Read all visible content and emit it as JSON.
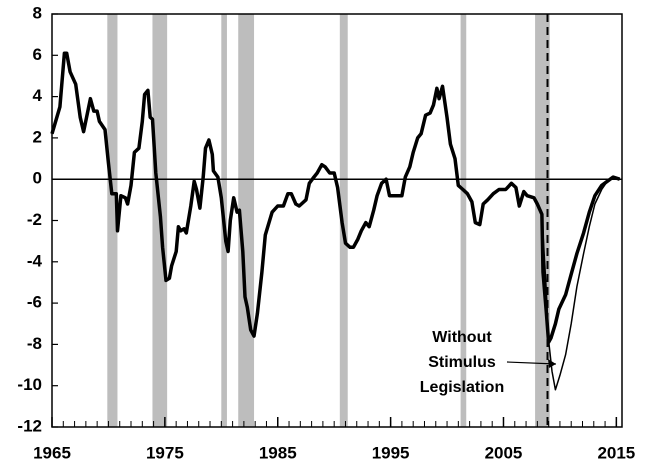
{
  "chart_data": {
    "type": "line",
    "xlim": [
      1965,
      2015.5
    ],
    "ylim": [
      -12,
      8
    ],
    "xticks": [
      1965,
      1975,
      1985,
      1995,
      2005,
      2015
    ],
    "xminor_step": 1,
    "yticks": [
      -12,
      -10,
      -8,
      -6,
      -4,
      -2,
      0,
      2,
      4,
      6,
      8
    ],
    "zero_line": true,
    "shaded_periods": [
      [
        1969.9,
        1970.8
      ],
      [
        1973.9,
        1975.2
      ],
      [
        1980.0,
        1980.5
      ],
      [
        1981.5,
        1982.9
      ],
      [
        1990.5,
        1991.2
      ],
      [
        2001.2,
        2001.7
      ],
      [
        2007.8,
        2009.1
      ]
    ],
    "shade_color": "#bdbdbd",
    "reference_x": 2008.9,
    "series": [
      {
        "color": "#000000",
        "width": 3.5,
        "x": [
          1965.0,
          1965.7,
          1966.1,
          1966.3,
          1966.6,
          1967.1,
          1967.5,
          1967.8,
          1968.4,
          1968.7,
          1969.0,
          1969.2,
          1969.7,
          1970.0,
          1970.3,
          1970.7,
          1970.8,
          1971.1,
          1971.5,
          1971.7,
          1972.0,
          1972.3,
          1972.7,
          1973.0,
          1973.2,
          1973.5,
          1973.7,
          1973.9,
          1974.2,
          1974.6,
          1974.8,
          1975.1,
          1975.4,
          1975.6,
          1976.0,
          1976.2,
          1976.4,
          1976.7,
          1976.9,
          1977.3,
          1977.6,
          1977.8,
          1978.1,
          1978.4,
          1978.6,
          1978.9,
          1979.2,
          1979.3,
          1979.7,
          1980.0,
          1980.4,
          1980.6,
          1980.8,
          1981.1,
          1981.4,
          1981.6,
          1981.9,
          1982.1,
          1982.3,
          1982.6,
          1982.9,
          1983.2,
          1983.6,
          1983.9,
          1984.5,
          1985.0,
          1985.5,
          1985.9,
          1986.2,
          1986.6,
          1986.9,
          1987.5,
          1987.8,
          1988.2,
          1988.5,
          1988.9,
          1989.2,
          1989.6,
          1990.0,
          1990.3,
          1990.7,
          1991.0,
          1991.4,
          1991.7,
          1992.1,
          1992.4,
          1992.8,
          1993.1,
          1993.5,
          1993.8,
          1994.2,
          1994.6,
          1994.9,
          1995.4,
          1996.0,
          1996.3,
          1996.7,
          1997.0,
          1997.4,
          1997.7,
          1998.1,
          1998.5,
          1998.8,
          1999.1,
          1999.3,
          1999.6,
          2000.0,
          2000.3,
          2000.7,
          2001.0,
          2001.4,
          2001.8,
          2002.2,
          2002.5,
          2002.9,
          2003.2,
          2003.6,
          2004.1,
          2004.6,
          2005.2,
          2005.7,
          2006.1,
          2006.4,
          2006.8,
          2007.1,
          2007.7,
          2008.0,
          2008.4,
          2008.5,
          2008.8,
          2009.0,
          2009.2,
          2009.6,
          2009.9,
          2010.5,
          2011.0,
          2011.5,
          2012.1,
          2012.6,
          2013.1,
          2013.7,
          2014.2,
          2014.7,
          2015.3
        ],
        "values": [
          2.2,
          3.5,
          6.1,
          6.1,
          5.2,
          4.6,
          3.0,
          2.3,
          3.9,
          3.3,
          3.3,
          2.8,
          2.4,
          0.8,
          -0.7,
          -0.7,
          -2.5,
          -0.8,
          -0.9,
          -1.2,
          -0.3,
          1.3,
          1.5,
          2.8,
          4.1,
          4.3,
          3.0,
          2.9,
          0.3,
          -1.8,
          -3.3,
          -4.9,
          -4.8,
          -4.2,
          -3.5,
          -2.3,
          -2.5,
          -2.4,
          -2.6,
          -1.3,
          -0.1,
          -0.5,
          -1.4,
          0.1,
          1.5,
          1.9,
          1.2,
          0.4,
          0.1,
          -0.9,
          -3.0,
          -3.5,
          -2.0,
          -0.9,
          -1.6,
          -1.5,
          -3.5,
          -5.7,
          -6.2,
          -7.3,
          -7.6,
          -6.5,
          -4.5,
          -2.7,
          -1.6,
          -1.3,
          -1.3,
          -0.7,
          -0.7,
          -1.2,
          -1.3,
          -1.0,
          -0.2,
          0.1,
          0.3,
          0.7,
          0.6,
          0.3,
          0.3,
          -0.4,
          -2.1,
          -3.1,
          -3.3,
          -3.3,
          -2.9,
          -2.5,
          -2.1,
          -2.3,
          -1.5,
          -0.8,
          -0.2,
          0.0,
          -0.8,
          -0.8,
          -0.8,
          0.1,
          0.6,
          1.3,
          2.0,
          2.2,
          3.1,
          3.2,
          3.6,
          4.4,
          3.9,
          4.5,
          3.0,
          1.7,
          1.0,
          -0.3,
          -0.5,
          -0.7,
          -1.1,
          -2.1,
          -2.2,
          -1.2,
          -1.0,
          -0.7,
          -0.5,
          -0.5,
          -0.2,
          -0.4,
          -1.3,
          -0.6,
          -0.8,
          -0.9,
          -1.2,
          -1.7,
          -4.5,
          -6.5,
          -7.9,
          -7.7,
          -7.0,
          -6.3,
          -5.6,
          -4.6,
          -3.6,
          -2.6,
          -1.6,
          -0.8,
          -0.3,
          -0.1,
          0.1,
          0.0
        ]
      },
      {
        "color": "#000000",
        "width": 1.5,
        "x": [
          2008.4,
          2008.8,
          2009.0,
          2009.3,
          2009.6,
          2010.0,
          2010.5,
          2011.0,
          2011.5,
          2012.1,
          2012.6,
          2013.1,
          2013.7,
          2014.2,
          2014.7
        ],
        "values": [
          -1.7,
          -5.5,
          -7.8,
          -9.3,
          -10.2,
          -9.5,
          -8.5,
          -7.0,
          -5.2,
          -3.6,
          -2.3,
          -1.2,
          -0.5,
          -0.1,
          0.1
        ]
      }
    ],
    "annotation": {
      "lines": [
        "Without",
        "Stimulus",
        "Legislation"
      ]
    }
  }
}
